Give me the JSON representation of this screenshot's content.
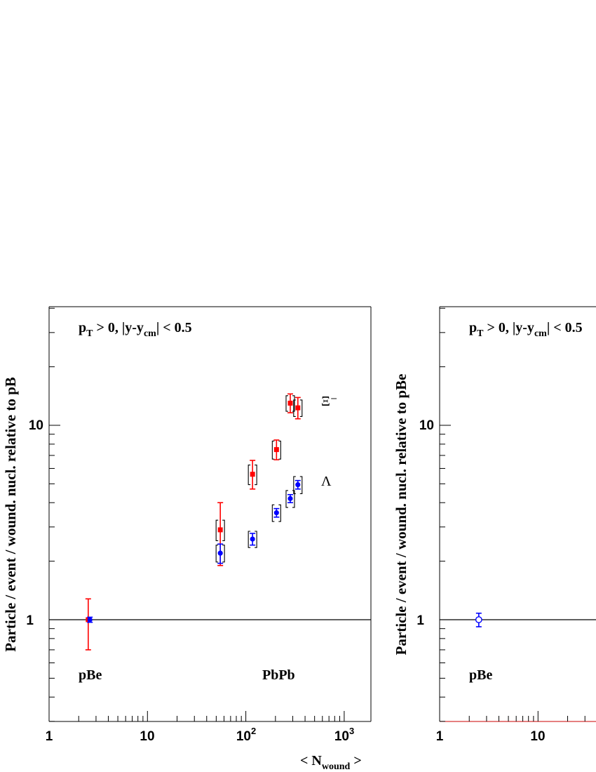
{
  "chart_data": [
    {
      "type": "scatter",
      "panel": "left",
      "x_scale": "log",
      "y_scale": "log",
      "xlim": [
        1,
        2000
      ],
      "ylim": [
        0.3,
        40
      ],
      "xlabel": "< N_wound >",
      "ylabel": "Particle / event / wound. nucl. relative to pB",
      "annotation": "p_T > 0, |y-y_cm| < 0.5",
      "x_ticks": [
        "1",
        "10",
        "10^2",
        "10^3"
      ],
      "y_ticks": [
        "1",
        "10"
      ],
      "reference_line": 1,
      "region_labels": [
        "pBe",
        "PbPb"
      ],
      "series": [
        {
          "name": "Ξ⁻",
          "color": "#ff0000",
          "marker": "square",
          "x": [
            2.5,
            55,
            117,
            205,
            283,
            338
          ],
          "y": [
            1.0,
            2.9,
            5.6,
            7.5,
            13.0,
            12.3
          ],
          "stat_err_up": [
            0.28,
            1.1,
            1.0,
            0.9,
            1.5,
            1.6
          ],
          "stat_err_down": [
            0.3,
            1.0,
            0.9,
            0.85,
            1.4,
            1.5
          ],
          "sys_up": [
            0,
            0.35,
            0.65,
            0.8,
            1.2,
            1.2
          ],
          "sys_down": [
            0,
            0.35,
            0.65,
            0.8,
            1.2,
            1.2
          ]
        },
        {
          "name": "Λ",
          "color": "#0000ff",
          "marker": "circle",
          "x": [
            2.6,
            55,
            117,
            205,
            283,
            338
          ],
          "y": [
            1.0,
            2.2,
            2.6,
            3.55,
            4.2,
            4.95
          ],
          "stat_err_up": [
            0.03,
            0.25,
            0.18,
            0.18,
            0.2,
            0.25
          ],
          "stat_err_down": [
            0.03,
            0.25,
            0.18,
            0.18,
            0.2,
            0.25
          ],
          "sys_up": [
            0,
            0.22,
            0.25,
            0.35,
            0.42,
            0.5
          ],
          "sys_down": [
            0,
            0.22,
            0.25,
            0.35,
            0.42,
            0.5
          ]
        }
      ]
    },
    {
      "type": "scatter",
      "panel": "right",
      "x_scale": "log",
      "y_scale": "log",
      "xlim": [
        1,
        2000
      ],
      "ylim": [
        0.3,
        40
      ],
      "ylabel": "Particle / event / wound. nucl. relative to pBe",
      "annotation": "p_T > 0, |y-y_cm| < 0.5",
      "x_ticks": [
        "1",
        "10"
      ],
      "y_ticks": [
        "1",
        "10"
      ],
      "reference_line": 1,
      "region_labels": [
        "pBe"
      ],
      "series": [
        {
          "name": "",
          "color": "#0000ff",
          "marker": "open-circle",
          "x": [
            2.5
          ],
          "y": [
            1.0
          ],
          "stat_err_up": [
            0.08
          ],
          "stat_err_down": [
            0.08
          ]
        }
      ]
    }
  ]
}
